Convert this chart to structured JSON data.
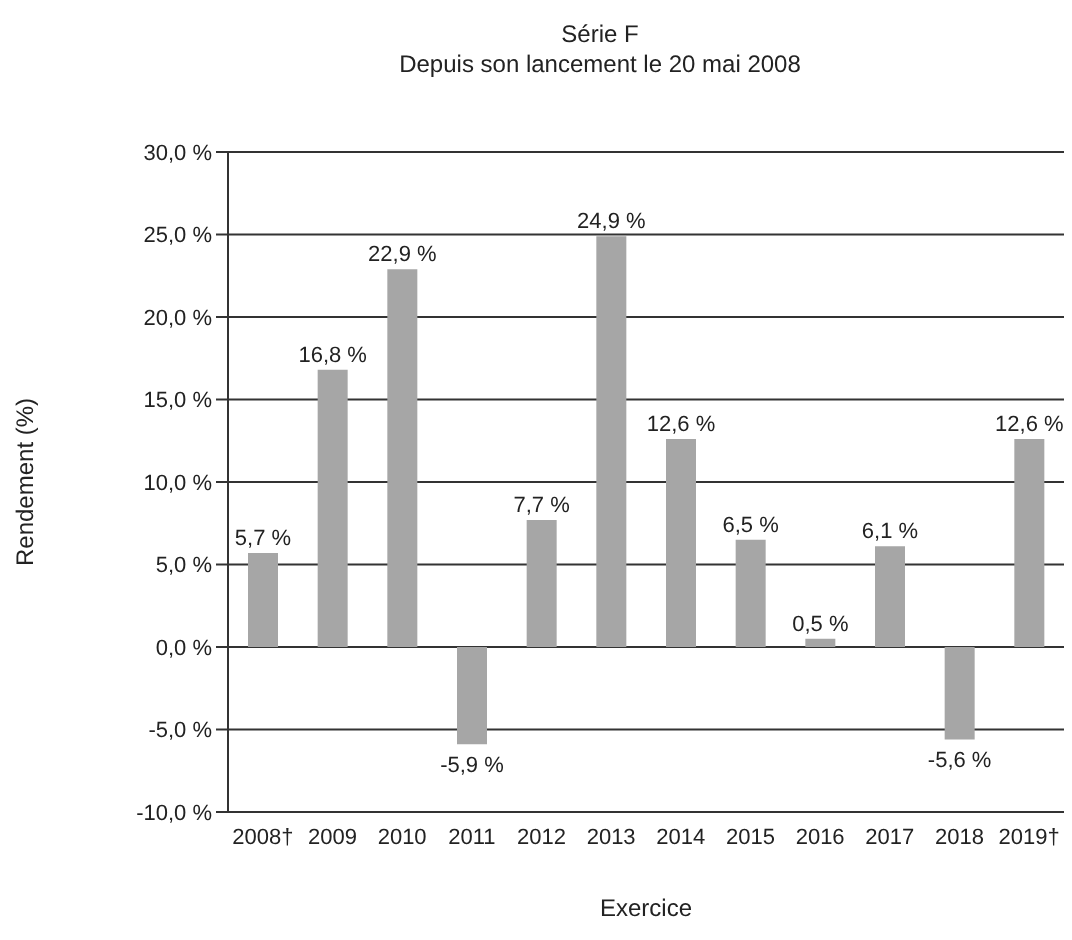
{
  "chart_data": {
    "type": "bar",
    "title": "Série F",
    "subtitle": "Depuis son lancement le 20 mai 2008",
    "xlabel": "Exercice",
    "ylabel": "Rendement  (%)",
    "categories": [
      "2008†",
      "2009",
      "2010",
      "2011",
      "2012",
      "2013",
      "2014",
      "2015",
      "2016",
      "2017",
      "2018",
      "2019†"
    ],
    "values": [
      5.7,
      16.8,
      22.9,
      -5.9,
      7.7,
      24.9,
      12.6,
      6.5,
      0.5,
      6.1,
      -5.6,
      12.6
    ],
    "value_labels": [
      "5,7 %",
      "16,8 %",
      "22,9 %",
      "-5,9 %",
      "7,7 %",
      "24,9 %",
      "12,6 %",
      "6,5 %",
      "0,5 %",
      "6,1 %",
      "-5,6 %",
      "12,6 %"
    ],
    "color": "#a6a6a6",
    "ylim": [
      -10,
      30
    ],
    "yticks": [
      {
        "value": -10,
        "label": "-10,0 %"
      },
      {
        "value": -5,
        "label": "-5,0 %"
      },
      {
        "value": 0,
        "label": "0,0 %"
      },
      {
        "value": 5,
        "label": "5,0 %"
      },
      {
        "value": 10,
        "label": "10,0 %"
      },
      {
        "value": 15,
        "label": "15,0 %"
      },
      {
        "value": 20,
        "label": "20,0 %"
      },
      {
        "value": 25,
        "label": "25,0 %"
      },
      {
        "value": 30,
        "label": "30,0 %"
      }
    ],
    "grid": "y",
    "legend": false
  }
}
